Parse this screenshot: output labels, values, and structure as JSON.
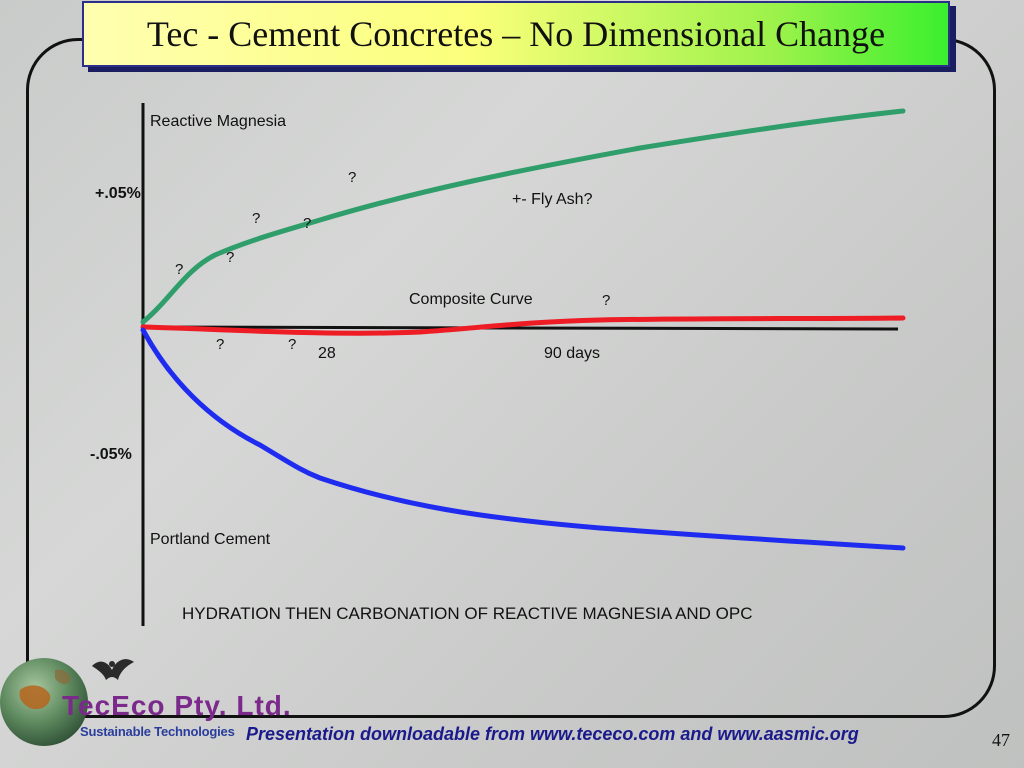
{
  "slide": {
    "title": "Tec - Cement Concretes – No Dimensional Change",
    "page_number": "47",
    "footer": "Presentation downloadable from www.tececo.com and www.aasmic.org"
  },
  "logo": {
    "name_part1": "TecEco",
    "name_part2": "Pty. Ltd.",
    "tagline": "Sustainable Technologies",
    "icons": [
      "globe-icon",
      "bird-icon"
    ]
  },
  "diagram": {
    "labels": {
      "reactive_magnesia": "Reactive Magnesia",
      "portland_cement": "Portland Cement",
      "composite_curve": "Composite Curve",
      "fly_ash": "+- Fly Ash?",
      "plus_label": "+.05%",
      "minus_label": "-.05%",
      "day_28": "28",
      "day_90": "90 days",
      "caption": "HYDRATION THEN CARBONATION OF REACTIVE MAGNESIA AND OPC"
    },
    "question_marks": [
      "?",
      "?",
      "?",
      "?",
      "?",
      "?",
      "?",
      "?"
    ],
    "colors": {
      "reactive_magnesia": "#2f9e6b",
      "composite": "#ee1c24",
      "portland_cement": "#1f2cf0",
      "axis": "#111111"
    }
  }
}
